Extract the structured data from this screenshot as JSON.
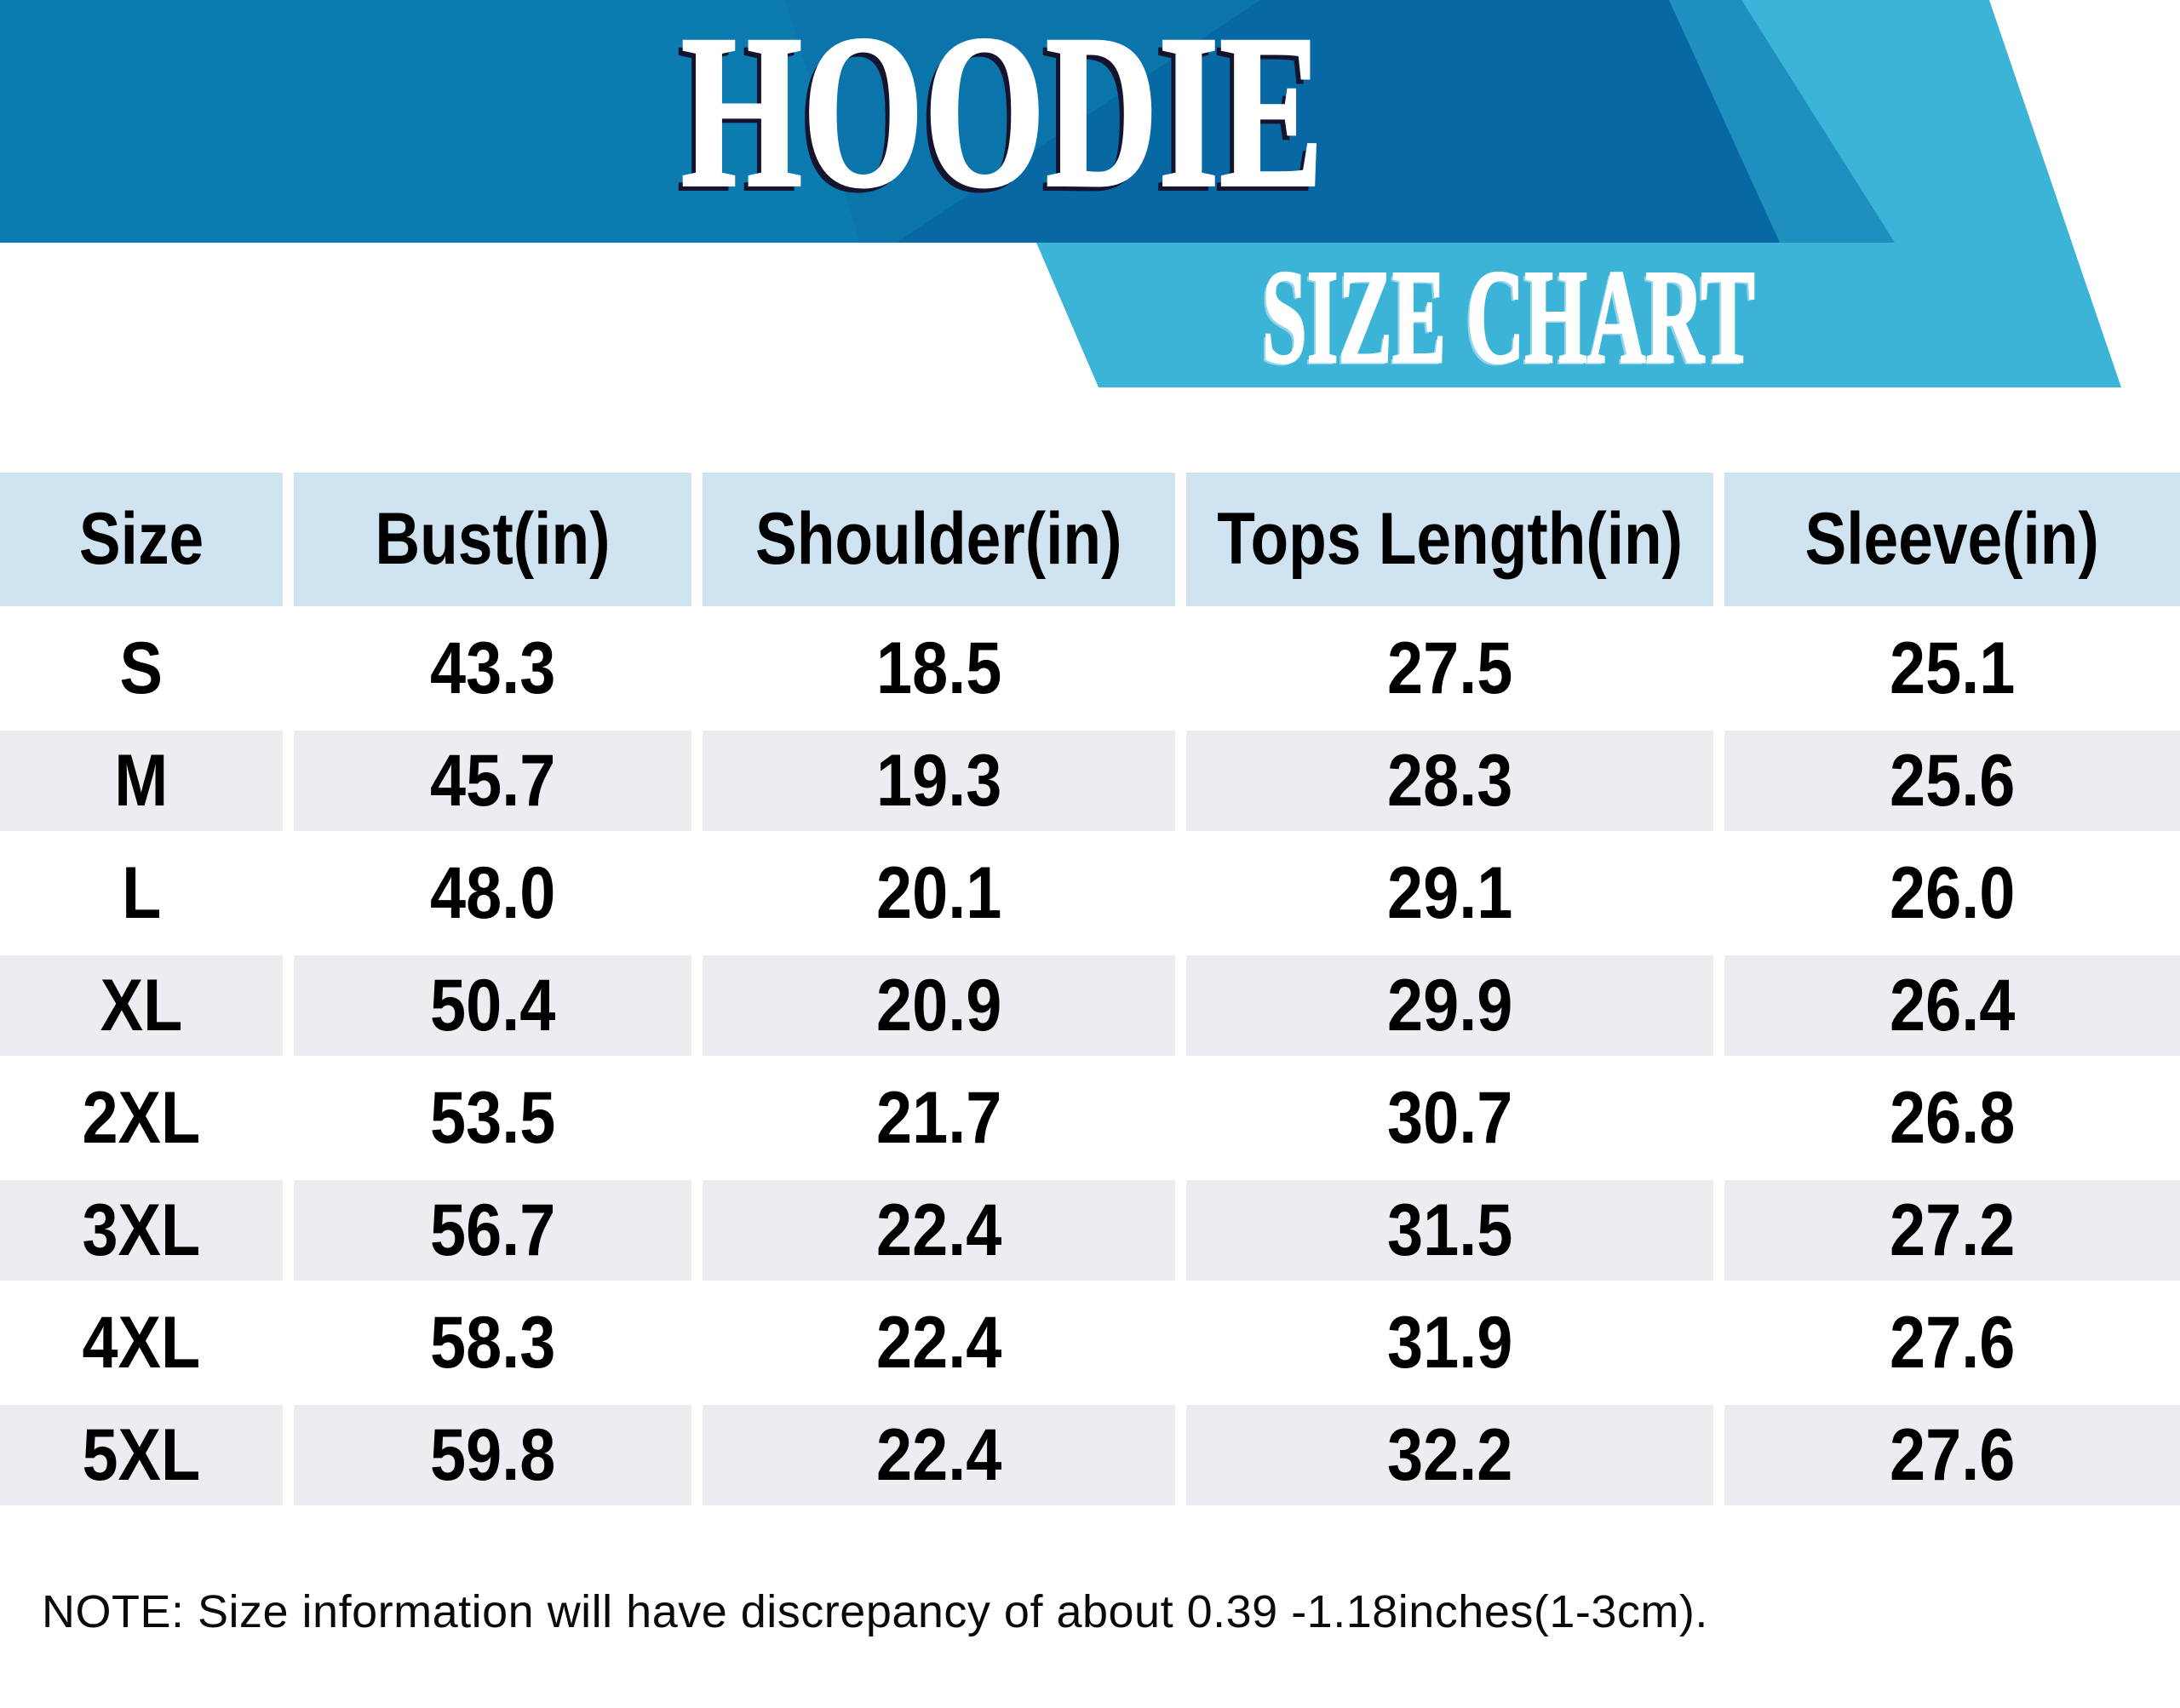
{
  "banner": {
    "title": "HOODIE",
    "subtitle": "SIZE CHART"
  },
  "chart_data": {
    "type": "table",
    "title": "HOODIE SIZE CHART",
    "columns": [
      "Size",
      "Bust(in)",
      "Shoulder(in)",
      "Tops Length(in)",
      "Sleeve(in)"
    ],
    "rows": [
      {
        "size": "S",
        "values": [
          "43.3",
          "18.5",
          "27.5",
          "25.1"
        ]
      },
      {
        "size": "M",
        "values": [
          "45.7",
          "19.3",
          "28.3",
          "25.6"
        ]
      },
      {
        "size": "L",
        "values": [
          "48.0",
          "20.1",
          "29.1",
          "26.0"
        ]
      },
      {
        "size": "XL",
        "values": [
          "50.4",
          "20.9",
          "29.9",
          "26.4"
        ]
      },
      {
        "size": "2XL",
        "values": [
          "53.5",
          "21.7",
          "30.7",
          "26.8"
        ]
      },
      {
        "size": "3XL",
        "values": [
          "56.7",
          "22.4",
          "31.5",
          "27.2"
        ]
      },
      {
        "size": "4XL",
        "values": [
          "58.3",
          "22.4",
          "31.9",
          "27.6"
        ]
      },
      {
        "size": "5XL",
        "values": [
          "59.8",
          "22.4",
          "32.2",
          "27.6"
        ]
      }
    ]
  },
  "note": "NOTE: Size information will have discrepancy of about 0.39 -1.18inches(1-3cm).",
  "colors": {
    "banner_base_blue": "#0C7CB0",
    "banner_dark_blue": "#0768A4",
    "banner_accent_blue": "#1E8FBE",
    "ribbon_light_blue": "#3CB4D8",
    "table_header_bg": "#CFE3F0",
    "table_alt_row_bg": "#EDECF0",
    "title_shadow": "#14142E",
    "text_black": "#000000"
  }
}
